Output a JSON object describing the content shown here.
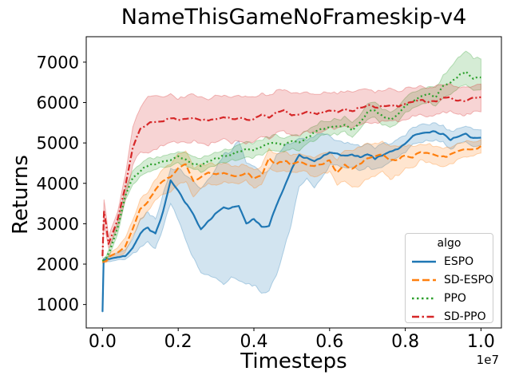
{
  "figure": {
    "title": "NameThisGameNoFrameskip-v4",
    "xlabel": "Timesteps",
    "ylabel": "Returns",
    "offset_label": "1e7"
  },
  "chart_data": {
    "type": "line",
    "title": "NameThisGameNoFrameskip-v4",
    "xlabel": "Timesteps",
    "ylabel": "Returns",
    "x_unit": "1e7",
    "grid": false,
    "xlim": [
      -0.043,
      1.054
    ],
    "ylim": [
      420,
      7630
    ],
    "xticks": {
      "values": [
        0,
        0.2,
        0.4,
        0.6,
        0.8,
        1.0
      ],
      "labels": [
        "0.0",
        "0.2",
        "0.4",
        "0.6",
        "0.8",
        "1.0"
      ]
    },
    "yticks": {
      "values": [
        1000,
        2000,
        3000,
        4000,
        5000,
        6000,
        7000
      ],
      "labels": [
        "1000",
        "2000",
        "3000",
        "4000",
        "5000",
        "6000",
        "7000"
      ]
    },
    "legend": {
      "title": "algo",
      "position": "lower right"
    },
    "band_alpha": 0.2,
    "noise": {
      "grid": 0.009,
      "mean_amp": 28,
      "band_amp": 40
    },
    "series": [
      {
        "name": "ESPO",
        "color": "#1f77b4",
        "linestyle": "solid",
        "x": [
          0,
          0.003,
          0.01,
          0.02,
          0.04,
          0.06,
          0.08,
          0.1,
          0.12,
          0.14,
          0.16,
          0.18,
          0.2,
          0.22,
          0.24,
          0.26,
          0.28,
          0.3,
          0.32,
          0.34,
          0.36,
          0.38,
          0.4,
          0.42,
          0.44,
          0.46,
          0.48,
          0.5,
          0.52,
          0.54,
          0.56,
          0.58,
          0.6,
          0.62,
          0.64,
          0.66,
          0.68,
          0.7,
          0.72,
          0.74,
          0.76,
          0.78,
          0.8,
          0.82,
          0.84,
          0.86,
          0.88,
          0.9,
          0.92,
          0.94,
          0.96,
          0.98,
          1
        ],
        "y": [
          820,
          2100,
          2120,
          2130,
          2180,
          2200,
          2400,
          2760,
          2900,
          2750,
          3300,
          4050,
          3800,
          3500,
          3220,
          2870,
          3050,
          3250,
          3420,
          3380,
          3450,
          3020,
          3100,
          2920,
          2960,
          3450,
          3900,
          4350,
          4700,
          4620,
          4530,
          4650,
          4780,
          4750,
          4680,
          4720,
          4650,
          4700,
          4620,
          4700,
          4800,
          4850,
          4980,
          5180,
          5220,
          5250,
          5280,
          5200,
          5080,
          5150,
          5220,
          5120,
          5150
        ],
        "band_low": [
          800,
          2050,
          2060,
          2060,
          2100,
          2100,
          2250,
          2400,
          2550,
          2400,
          2900,
          3500,
          3100,
          2600,
          2150,
          1800,
          1700,
          1650,
          1500,
          1700,
          1600,
          1500,
          1480,
          1300,
          1350,
          1750,
          2350,
          3050,
          3950,
          4100,
          3900,
          4150,
          4450,
          4480,
          4380,
          4400,
          4350,
          4400,
          4320,
          4420,
          4560,
          4620,
          4760,
          4990,
          5030,
          5060,
          5090,
          5000,
          4870,
          4960,
          5030,
          4930,
          4980
        ],
        "band_high": [
          840,
          2150,
          2180,
          2200,
          2280,
          2320,
          2600,
          3120,
          3280,
          3120,
          3720,
          4350,
          4380,
          4200,
          4050,
          3900,
          4100,
          4380,
          4720,
          4800,
          5080,
          4520,
          4420,
          4260,
          4320,
          4720,
          4920,
          5020,
          5120,
          5060,
          5180,
          5220,
          5160,
          5060,
          4970,
          5010,
          4920,
          4960,
          4870,
          4960,
          5010,
          5060,
          5210,
          5390,
          5430,
          5460,
          5490,
          5410,
          5290,
          5360,
          5430,
          5330,
          5360
        ]
      },
      {
        "name": "SD-ESPO",
        "color": "#ff7f0e",
        "linestyle": "dashed",
        "x": [
          0,
          0.01,
          0.02,
          0.04,
          0.06,
          0.08,
          0.1,
          0.12,
          0.14,
          0.16,
          0.18,
          0.2,
          0.22,
          0.24,
          0.26,
          0.28,
          0.3,
          0.32,
          0.34,
          0.36,
          0.38,
          0.4,
          0.42,
          0.44,
          0.46,
          0.48,
          0.5,
          0.52,
          0.54,
          0.56,
          0.58,
          0.6,
          0.62,
          0.64,
          0.66,
          0.68,
          0.7,
          0.72,
          0.74,
          0.76,
          0.78,
          0.8,
          0.82,
          0.84,
          0.86,
          0.88,
          0.9,
          0.92,
          0.94,
          0.96,
          0.98,
          1
        ],
        "y": [
          2050,
          2080,
          2200,
          2280,
          2450,
          2900,
          3350,
          3550,
          3850,
          4050,
          4150,
          4400,
          4450,
          4050,
          4150,
          4250,
          4200,
          4280,
          4220,
          4180,
          4260,
          4120,
          4200,
          4620,
          4480,
          4550,
          4480,
          4550,
          4480,
          4420,
          4480,
          4560,
          4280,
          4450,
          4380,
          4480,
          4620,
          4650,
          4720,
          4550,
          4600,
          4680,
          4650,
          4780,
          4750,
          4700,
          4650,
          4700,
          4800,
          4850,
          4850,
          4900
        ],
        "band_low": [
          2020,
          2040,
          2120,
          2180,
          2300,
          2700,
          3100,
          3300,
          3600,
          3750,
          3750,
          4000,
          4050,
          3700,
          3850,
          4000,
          3950,
          4050,
          4000,
          3950,
          4050,
          3900,
          3980,
          4380,
          4250,
          4320,
          4250,
          4320,
          4250,
          4180,
          4230,
          4280,
          3950,
          4050,
          3900,
          3950,
          4100,
          4200,
          4300,
          4100,
          4200,
          4350,
          4380,
          4550,
          4520,
          4470,
          4420,
          4480,
          4600,
          4670,
          4670,
          4720
        ],
        "band_high": [
          2080,
          2130,
          2280,
          2400,
          2650,
          3100,
          3600,
          3800,
          4100,
          4350,
          4500,
          4750,
          4800,
          4400,
          4450,
          4500,
          4450,
          4520,
          4450,
          4420,
          4480,
          4350,
          4420,
          4850,
          4700,
          4780,
          4700,
          4780,
          4700,
          4650,
          4720,
          4800,
          4600,
          4800,
          4800,
          4900,
          5000,
          5000,
          5050,
          4900,
          4900,
          4950,
          4900,
          5000,
          4970,
          4920,
          4870,
          4920,
          5000,
          5030,
          5030,
          5080
        ]
      },
      {
        "name": "PPO",
        "color": "#2ca02c",
        "linestyle": "dotted",
        "x": [
          0,
          0.01,
          0.02,
          0.04,
          0.06,
          0.08,
          0.1,
          0.12,
          0.14,
          0.16,
          0.18,
          0.2,
          0.22,
          0.24,
          0.26,
          0.28,
          0.3,
          0.32,
          0.34,
          0.36,
          0.38,
          0.4,
          0.42,
          0.44,
          0.46,
          0.48,
          0.5,
          0.52,
          0.54,
          0.56,
          0.58,
          0.6,
          0.62,
          0.64,
          0.66,
          0.68,
          0.7,
          0.72,
          0.74,
          0.76,
          0.78,
          0.8,
          0.82,
          0.84,
          0.86,
          0.88,
          0.9,
          0.92,
          0.94,
          0.96,
          0.98,
          1
        ],
        "y": [
          2080,
          2150,
          2350,
          2900,
          3700,
          4150,
          4300,
          4450,
          4480,
          4550,
          4580,
          4650,
          4580,
          4480,
          4450,
          4550,
          4600,
          4680,
          4720,
          4780,
          4850,
          4820,
          4900,
          4980,
          5000,
          4950,
          5050,
          5000,
          5150,
          5250,
          5350,
          5380,
          5400,
          5450,
          5300,
          5500,
          5750,
          5830,
          5650,
          5580,
          5700,
          5950,
          6050,
          6150,
          6200,
          6150,
          6400,
          6500,
          6650,
          6780,
          6600,
          6620
        ],
        "band_low": [
          2050,
          2100,
          2250,
          2750,
          3550,
          4000,
          4150,
          4300,
          4330,
          4400,
          4430,
          4500,
          4430,
          4330,
          4300,
          4400,
          4450,
          4520,
          4560,
          4600,
          4670,
          4640,
          4720,
          4800,
          4820,
          4770,
          4870,
          4820,
          4970,
          5070,
          5170,
          5200,
          5220,
          5270,
          5100,
          5300,
          5550,
          5630,
          5450,
          5380,
          5500,
          5750,
          5850,
          5950,
          6000,
          5950,
          6150,
          6200,
          6350,
          6430,
          6300,
          6350
        ],
        "band_high": [
          2110,
          2200,
          2450,
          3050,
          3850,
          4300,
          4450,
          4600,
          4630,
          4700,
          4730,
          4800,
          4730,
          4630,
          4600,
          4700,
          4750,
          4840,
          4880,
          4960,
          5030,
          5000,
          5080,
          5160,
          5180,
          5130,
          5230,
          5180,
          5330,
          5430,
          5530,
          5560,
          5580,
          5630,
          5500,
          5700,
          5950,
          6030,
          5850,
          5780,
          5900,
          6150,
          6250,
          6350,
          6400,
          6350,
          6650,
          6900,
          7150,
          7250,
          7100,
          7100
        ]
      },
      {
        "name": "SD-PPO",
        "color": "#d62728",
        "linestyle": "dashdot",
        "x": [
          0,
          0.004,
          0.01,
          0.016,
          0.02,
          0.04,
          0.06,
          0.08,
          0.1,
          0.12,
          0.14,
          0.16,
          0.18,
          0.2,
          0.22,
          0.24,
          0.26,
          0.28,
          0.3,
          0.32,
          0.34,
          0.36,
          0.38,
          0.4,
          0.42,
          0.44,
          0.46,
          0.48,
          0.5,
          0.52,
          0.54,
          0.56,
          0.58,
          0.6,
          0.62,
          0.64,
          0.66,
          0.68,
          0.7,
          0.72,
          0.74,
          0.76,
          0.78,
          0.8,
          0.82,
          0.84,
          0.86,
          0.88,
          0.9,
          0.92,
          0.94,
          0.96,
          0.98,
          1
        ],
        "y": [
          2200,
          3300,
          2950,
          2500,
          2600,
          3100,
          3900,
          4900,
          5350,
          5480,
          5520,
          5560,
          5620,
          5550,
          5580,
          5640,
          5580,
          5530,
          5600,
          5650,
          5580,
          5620,
          5560,
          5600,
          5680,
          5620,
          5760,
          5820,
          5680,
          5720,
          5780,
          5720,
          5760,
          5820,
          5780,
          5850,
          5800,
          5870,
          5930,
          5880,
          5910,
          5950,
          5900,
          5960,
          6010,
          6060,
          6000,
          6050,
          6100,
          6120,
          6050,
          6030,
          6100,
          6120
        ],
        "band_low": [
          2150,
          2950,
          2700,
          2400,
          2450,
          2900,
          3600,
          4450,
          4800,
          4750,
          4850,
          4950,
          5050,
          5000,
          5000,
          5050,
          5000,
          4950,
          5050,
          5100,
          5000,
          5050,
          4980,
          5050,
          5150,
          5100,
          5250,
          5300,
          5150,
          5200,
          5280,
          5250,
          5300,
          5380,
          5350,
          5420,
          5380,
          5450,
          5520,
          5480,
          5520,
          5570,
          5520,
          5590,
          5650,
          5700,
          5650,
          5700,
          5760,
          5780,
          5700,
          5680,
          5760,
          5780
        ],
        "band_high": [
          2250,
          3600,
          3200,
          2650,
          2800,
          3300,
          4200,
          5350,
          5900,
          6150,
          6150,
          6150,
          6200,
          6100,
          6150,
          6220,
          6150,
          6100,
          6150,
          6200,
          6150,
          6180,
          6120,
          6160,
          6230,
          6150,
          6280,
          6330,
          6200,
          6230,
          6280,
          6200,
          6230,
          6270,
          6220,
          6280,
          6230,
          6290,
          6340,
          6280,
          6300,
          6330,
          6280,
          6330,
          6370,
          6420,
          6350,
          6400,
          6440,
          6460,
          6400,
          6380,
          6440,
          6460
        ]
      }
    ]
  }
}
